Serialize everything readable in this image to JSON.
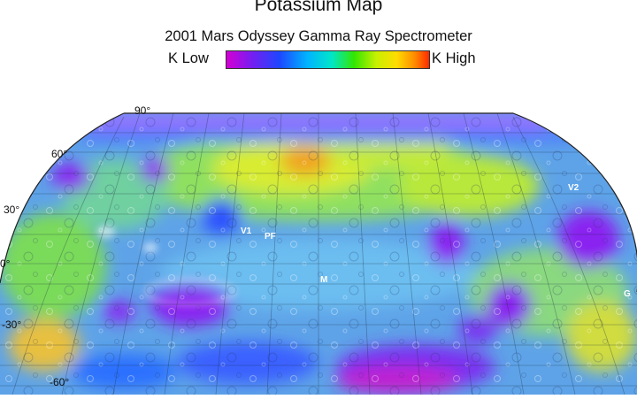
{
  "title": "Potassium Map",
  "subtitle": "2001 Mars Odyssey Gamma Ray Spectrometer",
  "legend": {
    "low_label": "K Low",
    "high_label": "K High",
    "colors": [
      "#d400d4",
      "#7a1cf0",
      "#1e46ff",
      "#00b4ff",
      "#00e6c8",
      "#33e600",
      "#c8f000",
      "#ffdc00",
      "#ff8a00",
      "#ff2a00"
    ]
  },
  "latitude_labels": {
    "lat90": "90°",
    "lat60": "60°",
    "lat30": "30°",
    "lat0": "0°",
    "latm30": "-30°",
    "latm60": "-60°"
  },
  "map_labels": {
    "v1": "V1",
    "pf": "PF",
    "m": "M",
    "v2": "V2",
    "g": "G"
  }
}
